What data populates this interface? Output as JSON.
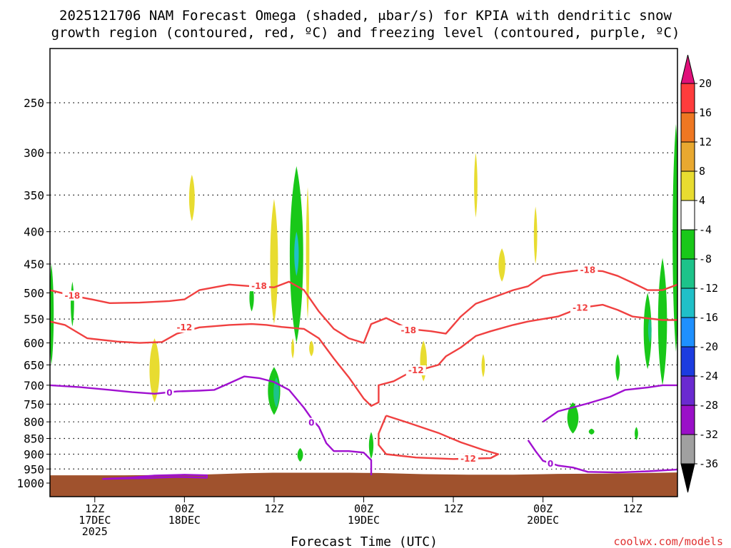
{
  "chart_data": {
    "type": "time-height cross section",
    "title_line1": "2025121706 NAM Forecast Omega (shaded, μbar/s) for KPIA with dendritic snow",
    "title_line2": "growth region (contoured, red, ºC) and freezing level (contoured, purple, ºC)",
    "xlabel": "Forecast Time (UTC)",
    "credit": "coolwx.com/models",
    "pressure_levels": [
      "250",
      "300",
      "350",
      "400",
      "450",
      "500",
      "550",
      "600",
      "650",
      "700",
      "750",
      "800",
      "850",
      "900",
      "950",
      "1000"
    ],
    "time_ticks": [
      {
        "hour": 6,
        "line1": "12Z",
        "line2": "17DEC",
        "line3": "2025"
      },
      {
        "hour": 18,
        "line1": "00Z",
        "line2": "18DEC",
        "line3": ""
      },
      {
        "hour": 30,
        "line1": "12Z",
        "line2": "",
        "line3": ""
      },
      {
        "hour": 42,
        "line1": "00Z",
        "line2": "19DEC",
        "line3": ""
      },
      {
        "hour": 54,
        "line1": "12Z",
        "line2": "",
        "line3": ""
      },
      {
        "hour": 66,
        "line1": "00Z",
        "line2": "20DEC",
        "line3": ""
      },
      {
        "hour": 78,
        "line1": "12Z",
        "line2": "",
        "line3": ""
      }
    ],
    "time_range_hours": [
      0,
      84
    ],
    "colorbar": {
      "labels": [
        "20",
        "16",
        "12",
        "8",
        "4",
        "-4",
        "-8",
        "-12",
        "-16",
        "-20",
        "-24",
        "-28",
        "-32",
        "-36"
      ],
      "segments": [
        {
          "from": 16,
          "to": 20,
          "color": "#ff3c3c"
        },
        {
          "from": 12,
          "to": 16,
          "color": "#ee7722"
        },
        {
          "from": 8,
          "to": 12,
          "color": "#e8a830"
        },
        {
          "from": 4,
          "to": 8,
          "color": "#e8dc30"
        },
        {
          "from": -4,
          "to": 4,
          "color": "#ffffff"
        },
        {
          "from": -8,
          "to": -4,
          "color": "#19c819"
        },
        {
          "from": -12,
          "to": -8,
          "color": "#1dc38a"
        },
        {
          "from": -16,
          "to": -12,
          "color": "#20c0c8"
        },
        {
          "from": -20,
          "to": -16,
          "color": "#1e90ff"
        },
        {
          "from": -24,
          "to": -20,
          "color": "#1c3ce0"
        },
        {
          "from": -28,
          "to": -24,
          "color": "#6a2ad0"
        },
        {
          "from": -32,
          "to": -28,
          "color": "#9a10c8"
        },
        {
          "from": -36,
          "to": -32,
          "color": "#a0a0a0"
        }
      ],
      "over_color": "#e0107a",
      "under_color": "#000000"
    },
    "contours": [
      {
        "name": "dgz-minus18",
        "value": -18,
        "label": "-18",
        "color": "#f04040",
        "points": [
          [
            0,
            495
          ],
          [
            3,
            505
          ],
          [
            6,
            513
          ],
          [
            8,
            519
          ],
          [
            12,
            518
          ],
          [
            16,
            515
          ],
          [
            18,
            512
          ],
          [
            20,
            495
          ],
          [
            24,
            485
          ],
          [
            27,
            488
          ],
          [
            30,
            490
          ],
          [
            32,
            480
          ],
          [
            34,
            495
          ],
          [
            36,
            535
          ],
          [
            38,
            570
          ],
          [
            40,
            590
          ],
          [
            42,
            600
          ],
          [
            43,
            560
          ],
          [
            45,
            548
          ],
          [
            48,
            570
          ],
          [
            51,
            575
          ],
          [
            53,
            580
          ],
          [
            55,
            545
          ],
          [
            57,
            520
          ],
          [
            60,
            505
          ],
          [
            62,
            495
          ],
          [
            64,
            488
          ],
          [
            66,
            470
          ],
          [
            68,
            465
          ],
          [
            71,
            460
          ],
          [
            74,
            462
          ],
          [
            76,
            470
          ],
          [
            78,
            482
          ],
          [
            80,
            495
          ],
          [
            82,
            495
          ],
          [
            84,
            485
          ]
        ],
        "label_at": [
          [
            3,
            505
          ],
          [
            28,
            488
          ],
          [
            48,
            573
          ],
          [
            72,
            460
          ]
        ]
      },
      {
        "name": "dgz-minus12",
        "value": -12,
        "label": "-12",
        "color": "#f04040",
        "points": [
          [
            0,
            555
          ],
          [
            2,
            562
          ],
          [
            5,
            590
          ],
          [
            9,
            597
          ],
          [
            12,
            600
          ],
          [
            15,
            598
          ],
          [
            17,
            580
          ],
          [
            20,
            567
          ],
          [
            24,
            562
          ],
          [
            27,
            560
          ],
          [
            29,
            562
          ],
          [
            31,
            566
          ],
          [
            34,
            570
          ],
          [
            36,
            590
          ],
          [
            38,
            635
          ],
          [
            40,
            680
          ],
          [
            42,
            735
          ],
          [
            43,
            755
          ],
          [
            44,
            745
          ],
          [
            44,
            700
          ],
          [
            46,
            690
          ],
          [
            48,
            670
          ],
          [
            50,
            660
          ],
          [
            52,
            650
          ],
          [
            53,
            630
          ],
          [
            55,
            610
          ],
          [
            57,
            585
          ],
          [
            59,
            575
          ],
          [
            62,
            562
          ],
          [
            64,
            555
          ],
          [
            66,
            550
          ],
          [
            68,
            545
          ],
          [
            71,
            528
          ],
          [
            74,
            522
          ],
          [
            76,
            532
          ],
          [
            78,
            545
          ],
          [
            82,
            552
          ],
          [
            84,
            552
          ]
        ],
        "label_at": [
          [
            18,
            567
          ],
          [
            49,
            663
          ],
          [
            71,
            528
          ]
        ]
      },
      {
        "name": "dgz-minus12-low",
        "value": -12,
        "label": "-12",
        "color": "#f04040",
        "points": [
          [
            45,
            782
          ],
          [
            48,
            803
          ],
          [
            52,
            833
          ],
          [
            55,
            862
          ],
          [
            58,
            886
          ],
          [
            60,
            900
          ],
          [
            59,
            913
          ],
          [
            54,
            916
          ],
          [
            49,
            911
          ],
          [
            45,
            900
          ],
          [
            44,
            870
          ],
          [
            44,
            835
          ],
          [
            45,
            782
          ]
        ],
        "label_at": [
          [
            56,
            915
          ]
        ]
      },
      {
        "name": "freezing-level",
        "value": 0,
        "label": "0",
        "color": "#a010d0",
        "points": [
          [
            0,
            700
          ],
          [
            4,
            705
          ],
          [
            8,
            712
          ],
          [
            11,
            718
          ],
          [
            14,
            722
          ],
          [
            17,
            716
          ],
          [
            20,
            714
          ],
          [
            22,
            712
          ],
          [
            24,
            695
          ],
          [
            26,
            678
          ],
          [
            28,
            682
          ],
          [
            30,
            692
          ],
          [
            32,
            712
          ],
          [
            34,
            760
          ],
          [
            35,
            790
          ],
          [
            36,
            815
          ],
          [
            37,
            865
          ],
          [
            38,
            890
          ],
          [
            40,
            890
          ],
          [
            42,
            895
          ],
          [
            43,
            920
          ],
          [
            43,
            972
          ]
        ],
        "label_at": [
          [
            16,
            720
          ],
          [
            35,
            803
          ]
        ]
      },
      {
        "name": "freezing-level-east",
        "value": 0,
        "label": "0",
        "color": "#a010d0",
        "points": [
          [
            64,
            855
          ],
          [
            65,
            890
          ],
          [
            66,
            922
          ],
          [
            68,
            938
          ],
          [
            70,
            945
          ],
          [
            72,
            960
          ],
          [
            76,
            962
          ],
          [
            80,
            958
          ],
          [
            84,
            952
          ]
        ],
        "label_at": [
          [
            67,
            932
          ]
        ]
      },
      {
        "name": "freezing-level-sw",
        "value": 0,
        "label": "",
        "color": "#a010d0",
        "points": [
          [
            7,
            985
          ],
          [
            11,
            980
          ],
          [
            14,
            973
          ],
          [
            18,
            970
          ],
          [
            21,
            972
          ],
          [
            21,
            981
          ],
          [
            17,
            978
          ],
          [
            13,
            982
          ],
          [
            7,
            985
          ]
        ],
        "label_at": []
      },
      {
        "name": "freezing-level-east-upper",
        "value": 0,
        "label": "",
        "color": "#a010d0",
        "points": [
          [
            66,
            800
          ],
          [
            68,
            770
          ],
          [
            72,
            748
          ],
          [
            75,
            730
          ],
          [
            77,
            712
          ],
          [
            80,
            706
          ],
          [
            82,
            700
          ],
          [
            84,
            700
          ]
        ],
        "label_at": []
      }
    ],
    "omega_areas": [
      {
        "color": "#19c819",
        "t": 0.2,
        "p_top": 450,
        "p_bottom": 650,
        "half_width_h": 0.4
      },
      {
        "color": "#19c819",
        "t": 3,
        "p_top": 480,
        "p_bottom": 565,
        "half_width_h": 0.3
      },
      {
        "color": "#e8dc30",
        "t": 14,
        "p_top": 590,
        "p_bottom": 745,
        "half_width_h": 0.9
      },
      {
        "color": "#e8dc30",
        "t": 19,
        "p_top": 325,
        "p_bottom": 385,
        "half_width_h": 0.5
      },
      {
        "color": "#19c819",
        "t": 27,
        "p_top": 485,
        "p_bottom": 535,
        "half_width_h": 0.4
      },
      {
        "color": "#e8dc30",
        "t": 30,
        "p_top": 355,
        "p_bottom": 560,
        "half_width_h": 0.7
      },
      {
        "color": "#19c819",
        "t": 33,
        "p_top": 315,
        "p_bottom": 600,
        "half_width_h": 1.2
      },
      {
        "color": "#20c0c8",
        "t": 33,
        "p_top": 400,
        "p_bottom": 470,
        "half_width_h": 0.4
      },
      {
        "color": "#e8dc30",
        "t": 34.5,
        "p_top": 340,
        "p_bottom": 550,
        "half_width_h": 0.3
      },
      {
        "color": "#e8dc30",
        "t": 32.5,
        "p_top": 590,
        "p_bottom": 635,
        "half_width_h": 0.25
      },
      {
        "color": "#e8dc30",
        "t": 35,
        "p_top": 595,
        "p_bottom": 630,
        "half_width_h": 0.4
      },
      {
        "color": "#19c819",
        "t": 30,
        "p_top": 655,
        "p_bottom": 780,
        "half_width_h": 1.1
      },
      {
        "color": "#1dc38a",
        "t": 30.3,
        "p_top": 680,
        "p_bottom": 760,
        "half_width_h": 0.5
      },
      {
        "color": "#19c819",
        "t": 33.5,
        "p_top": 880,
        "p_bottom": 925,
        "half_width_h": 0.5
      },
      {
        "color": "#19c819",
        "t": 43,
        "p_top": 830,
        "p_bottom": 915,
        "half_width_h": 0.4
      },
      {
        "color": "#e8dc30",
        "t": 50,
        "p_top": 595,
        "p_bottom": 690,
        "half_width_h": 0.6
      },
      {
        "color": "#e8dc30",
        "t": 57,
        "p_top": 300,
        "p_bottom": 380,
        "half_width_h": 0.3
      },
      {
        "color": "#e8dc30",
        "t": 58,
        "p_top": 625,
        "p_bottom": 680,
        "half_width_h": 0.3
      },
      {
        "color": "#e8dc30",
        "t": 60.5,
        "p_top": 425,
        "p_bottom": 480,
        "half_width_h": 0.6
      },
      {
        "color": "#e8dc30",
        "t": 65,
        "p_top": 365,
        "p_bottom": 450,
        "half_width_h": 0.3
      },
      {
        "color": "#19c819",
        "t": 70,
        "p_top": 745,
        "p_bottom": 835,
        "half_width_h": 1.0
      },
      {
        "color": "#19c819",
        "t": 72.5,
        "p_top": 820,
        "p_bottom": 838,
        "half_width_h": 0.5
      },
      {
        "color": "#19c819",
        "t": 76,
        "p_top": 625,
        "p_bottom": 690,
        "half_width_h": 0.4
      },
      {
        "color": "#19c819",
        "t": 78.5,
        "p_top": 815,
        "p_bottom": 855,
        "half_width_h": 0.3
      },
      {
        "color": "#19c819",
        "t": 80,
        "p_top": 500,
        "p_bottom": 660,
        "half_width_h": 0.7
      },
      {
        "color": "#19c819",
        "t": 82,
        "p_top": 440,
        "p_bottom": 700,
        "half_width_h": 0.8
      },
      {
        "color": "#1dc38a",
        "t": 80.3,
        "p_top": 545,
        "p_bottom": 600,
        "half_width_h": 0.3
      },
      {
        "color": "#19c819",
        "t": 83.8,
        "p_top": 270,
        "p_bottom": 620,
        "half_width_h": 0.6
      }
    ],
    "terrain": {
      "color": "#a0522d",
      "surface_pressure": [
        [
          0,
          972
        ],
        [
          10,
          972
        ],
        [
          20,
          970
        ],
        [
          26,
          965
        ],
        [
          30,
          963
        ],
        [
          40,
          963
        ],
        [
          44,
          964
        ],
        [
          50,
          968
        ],
        [
          56,
          970
        ],
        [
          62,
          970
        ],
        [
          68,
          967
        ],
        [
          74,
          966
        ],
        [
          80,
          964
        ],
        [
          84,
          962
        ]
      ]
    }
  }
}
